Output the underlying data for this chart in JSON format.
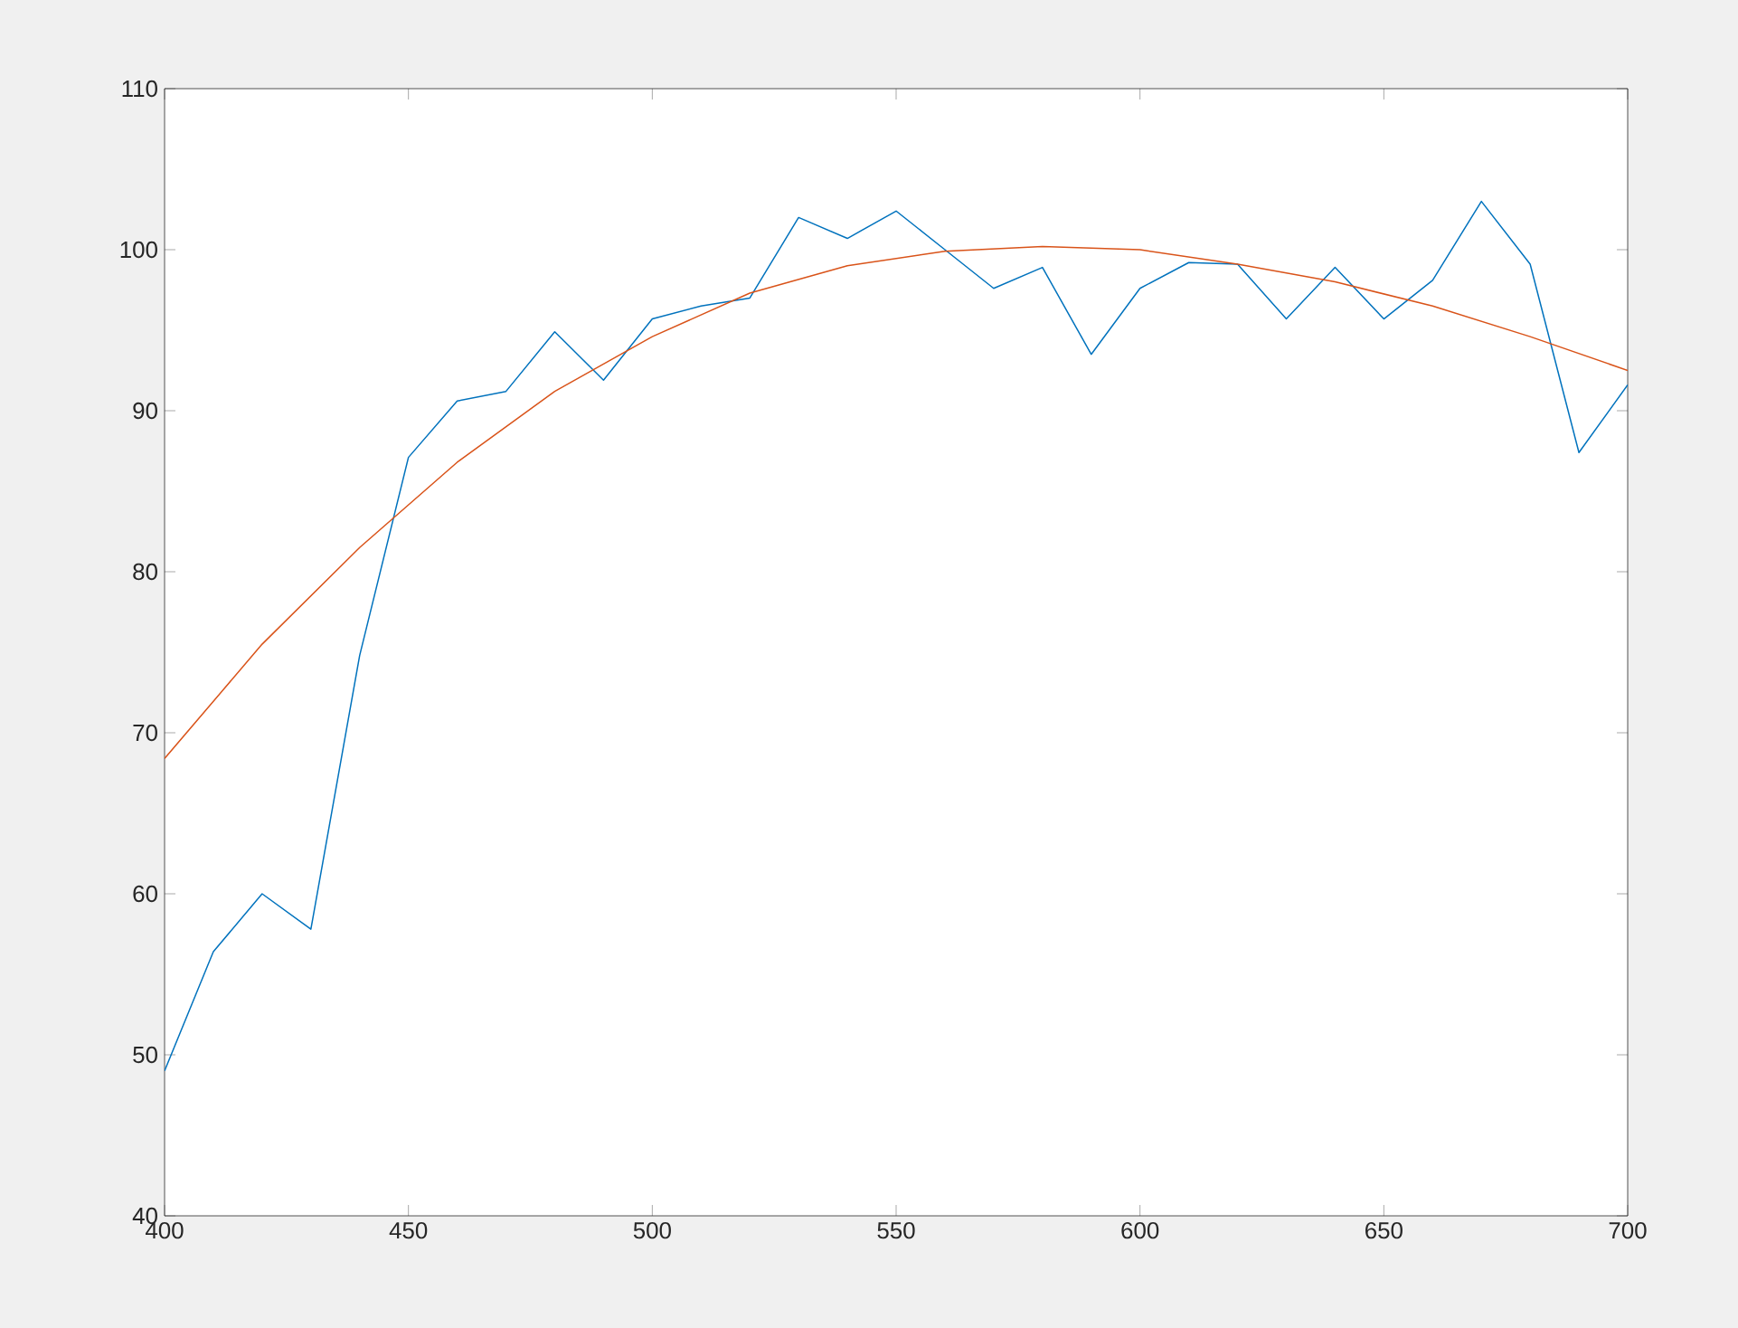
{
  "chart_data": {
    "type": "line",
    "xlim": [
      400,
      700
    ],
    "ylim": [
      40,
      110
    ],
    "xticks": [
      400,
      450,
      500,
      550,
      600,
      650,
      700
    ],
    "yticks": [
      40,
      50,
      60,
      70,
      80,
      90,
      100,
      110
    ],
    "series": [
      {
        "color": "#0072bd",
        "x": [
          400,
          410,
          420,
          430,
          440,
          450,
          460,
          470,
          480,
          490,
          500,
          510,
          520,
          530,
          540,
          550,
          560,
          570,
          580,
          590,
          600,
          610,
          620,
          630,
          640,
          650,
          660,
          670,
          680,
          690,
          700
        ],
        "values": [
          49.0,
          56.4,
          60.0,
          57.8,
          74.8,
          87.1,
          90.6,
          91.2,
          94.9,
          91.9,
          95.7,
          96.5,
          97.0,
          102.0,
          100.7,
          102.4,
          100.0,
          97.6,
          98.9,
          93.5,
          97.6,
          99.2,
          99.1,
          95.7,
          98.9,
          95.7,
          98.1,
          103.0,
          99.1,
          87.4,
          91.6
        ]
      },
      {
        "color": "#d95319",
        "x": [
          400,
          420,
          440,
          460,
          480,
          500,
          520,
          540,
          560,
          580,
          600,
          620,
          640,
          660,
          680,
          700
        ],
        "values": [
          68.4,
          75.5,
          81.5,
          86.8,
          91.2,
          94.6,
          97.3,
          99.0,
          99.9,
          100.2,
          100.0,
          99.1,
          98.0,
          96.5,
          94.6,
          92.5
        ]
      }
    ]
  }
}
